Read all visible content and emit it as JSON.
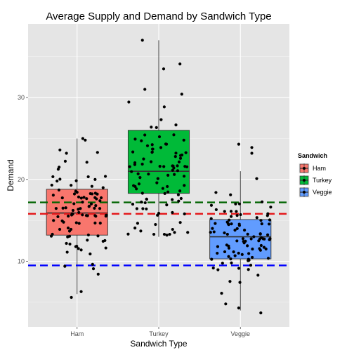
{
  "chart_data": {
    "type": "boxplot",
    "title": "Average Supply and Demand by Sandwich Type",
    "xlabel": "Sandwich Type",
    "ylabel": "Demand",
    "ylim": [
      2,
      39
    ],
    "yticks": [
      10,
      20,
      30
    ],
    "grid": true,
    "categories": [
      "Ham",
      "Turkey",
      "Veggie"
    ],
    "legend": {
      "title": "Sandwich",
      "position": "right",
      "entries": [
        "Ham",
        "Turkey",
        "Veggie"
      ]
    },
    "colors": {
      "Ham": "#f8766d",
      "Turkey": "#00ba38",
      "Veggie": "#619cff",
      "panel": "#e5e5e5",
      "grid": "#ffffff"
    },
    "boxes": [
      {
        "name": "Ham",
        "min": 6,
        "q1": 13.2,
        "median": 15.9,
        "q3": 18.8,
        "max": 25
      },
      {
        "name": "Turkey",
        "min": 13,
        "q1": 18.3,
        "median": 21,
        "q3": 26,
        "max": 37
      },
      {
        "name": "Veggie",
        "min": 4,
        "q1": 10.3,
        "median": 13,
        "q3": 15.1,
        "max": 21
      }
    ],
    "reference_lines": [
      {
        "name": "Turkey",
        "value": 17.2,
        "color": "#006400"
      },
      {
        "name": "Ham",
        "value": 15.8,
        "color": "#e41a1c"
      },
      {
        "name": "Veggie",
        "value": 9.5,
        "color": "#0000ff"
      }
    ],
    "points_per_group": 100,
    "points": {
      "Ham": [
        {
          "x": 0.93,
          "y": 5.6
        },
        {
          "x": 1.05,
          "y": 6.3
        },
        {
          "x": 1.2,
          "y": 9.1
        },
        {
          "x": 0.85,
          "y": 9.4
        },
        {
          "x": 1.1,
          "y": 24.8
        },
        {
          "x": 1.07,
          "y": 25
        },
        {
          "x": 0.79,
          "y": 23.6
        },
        {
          "x": 0.87,
          "y": 23.2
        },
        {
          "x": 1.12,
          "y": 22.1
        },
        {
          "x": 0.78,
          "y": 21.5
        },
        {
          "x": 1.25,
          "y": 23.3
        },
        {
          "x": 1.16,
          "y": 10.9
        }
      ],
      "Turkey": [
        {
          "x": 1.8,
          "y": 37
        },
        {
          "x": 2.26,
          "y": 34.1
        },
        {
          "x": 2.06,
          "y": 33.5
        },
        {
          "x": 1.83,
          "y": 31
        },
        {
          "x": 2.1,
          "y": 13.2
        },
        {
          "x": 1.96,
          "y": 14.5
        },
        {
          "x": 2.17,
          "y": 13.9
        },
        {
          "x": 1.78,
          "y": 13.7
        }
      ],
      "Veggie": [
        {
          "x": 3.25,
          "y": 3.7
        },
        {
          "x": 2.98,
          "y": 4.3
        },
        {
          "x": 2.82,
          "y": 4.8
        },
        {
          "x": 2.77,
          "y": 6.1
        },
        {
          "x": 2.98,
          "y": 24.3
        },
        {
          "x": 3.14,
          "y": 23.9
        },
        {
          "x": 3.14,
          "y": 23.2
        },
        {
          "x": 3.2,
          "y": 20.1
        }
      ]
    }
  }
}
